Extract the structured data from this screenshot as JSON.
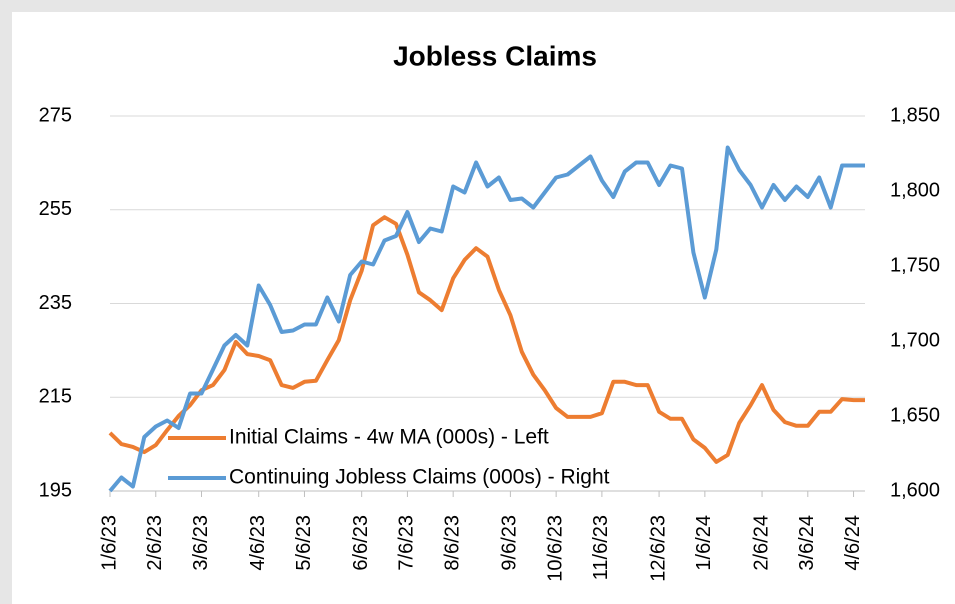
{
  "chart_data": {
    "type": "line",
    "title": "Jobless Claims",
    "categories": [
      "1/6/23",
      null,
      null,
      null,
      "2/6/23",
      null,
      null,
      null,
      "3/6/23",
      null,
      null,
      null,
      null,
      "4/6/23",
      null,
      null,
      null,
      "5/6/23",
      null,
      null,
      null,
      null,
      "6/6/23",
      null,
      null,
      null,
      "7/6/23",
      null,
      null,
      null,
      "8/6/23",
      null,
      null,
      null,
      null,
      "9/6/23",
      null,
      null,
      null,
      "10/6/23",
      null,
      null,
      null,
      "11/6/23",
      null,
      null,
      null,
      null,
      "12/6/23",
      null,
      null,
      null,
      "1/6/24",
      null,
      null,
      null,
      null,
      "2/6/24",
      null,
      null,
      null,
      "3/6/24",
      null,
      null,
      null,
      "4/6/24",
      null
    ],
    "series": [
      {
        "name": "Initial Claims - 4w MA (000s) - Left",
        "color": "#ed7d31",
        "axis": "y",
        "values": [
          207.4,
          205,
          204.4,
          203.3,
          204.8,
          208,
          211,
          213.3,
          216.5,
          217.6,
          220.8,
          226.8,
          224.2,
          223.8,
          222.9,
          217.6,
          217,
          218.3,
          218.5,
          222.9,
          227.2,
          235.7,
          242,
          251.7,
          253.4,
          252,
          245.4,
          237.4,
          235.7,
          233.6,
          240.4,
          244.3,
          246.8,
          245,
          237.9,
          232.5,
          224.7,
          219.8,
          216.5,
          212.7,
          210.8,
          210.8,
          210.8,
          211.6,
          218.3,
          218.3,
          217.6,
          217.6,
          211.9,
          210.4,
          210.4,
          206,
          204.2,
          201.2,
          202.7,
          209.5,
          213.3,
          217.6,
          212.3,
          209.7,
          208.9,
          208.9,
          211.9,
          211.9,
          214.6,
          214.4,
          214.4
        ]
      },
      {
        "name": "Continuing Jobless Claims (000s) - Right",
        "color": "#5b9bd5",
        "axis": "y2",
        "values": [
          1600,
          1609,
          1603,
          1636,
          1643,
          1647,
          1642,
          1665,
          1665,
          1681,
          1697,
          1704,
          1697,
          1737,
          1724,
          1706,
          1707,
          1711,
          1711,
          1729,
          1713,
          1744,
          1753,
          1751,
          1767,
          1770,
          1786,
          1766,
          1775,
          1773,
          1803,
          1799,
          1819,
          1803,
          1809,
          1794,
          1795,
          1789,
          1799,
          1809,
          1811,
          1817,
          1823,
          1807,
          1796,
          1813,
          1819,
          1819,
          1804,
          1817,
          1815,
          1759,
          1729,
          1761,
          1829,
          1814,
          1804,
          1789,
          1804,
          1794,
          1803,
          1796,
          1809,
          1789,
          1817,
          1817,
          1817
        ]
      }
    ],
    "ylim": [
      195,
      275
    ],
    "yticks": [
      195,
      215,
      235,
      255,
      275
    ],
    "y2lim": [
      1600,
      1850
    ],
    "y2ticks": [
      {
        "value": 1600,
        "label": "1,600"
      },
      {
        "value": 1650,
        "label": "1,650"
      },
      {
        "value": 1700,
        "label": "1,700"
      },
      {
        "value": 1750,
        "label": "1,750"
      },
      {
        "value": 1800,
        "label": "1,800"
      },
      {
        "value": 1850,
        "label": "1,850"
      }
    ],
    "grid": true,
    "legend": "bottom-left"
  }
}
